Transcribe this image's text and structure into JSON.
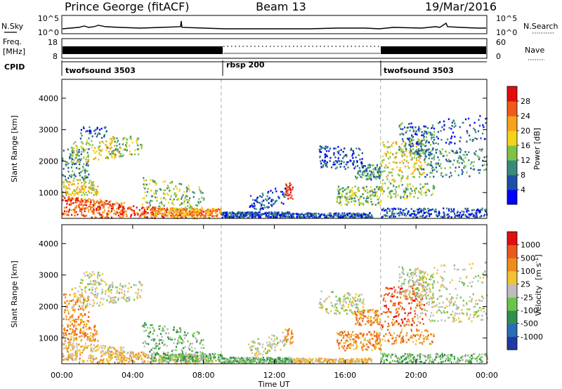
{
  "header": {
    "station": "Prince George (fitACF)",
    "beam": "Beam 13",
    "date": "19/Mar/2016"
  },
  "nsky_panel": {
    "left_label": "N.Sky",
    "right_label": "N.Search",
    "left_ticks": [
      "10^5",
      "10^0"
    ],
    "right_ticks": [
      "10^5",
      "10^0"
    ]
  },
  "freq_panel": {
    "left_label_line1": "Freq.",
    "left_label_line2": "[MHz]",
    "right_label": "Nave",
    "left_ticks": [
      "18",
      "8"
    ],
    "right_ticks": [
      "60",
      "0"
    ]
  },
  "cpid_panel": {
    "label": "CPID",
    "modes": [
      {
        "name": "twofsound 3503",
        "start_hour": 0
      },
      {
        "name": "rbsp 200",
        "start_hour": 9
      },
      {
        "name": "twofsound 3503",
        "start_hour": 18
      }
    ]
  },
  "chart_data": [
    {
      "type": "heatmap",
      "title": "",
      "xlabel": "",
      "ylabel": "Slant Range [km]",
      "xlim": [
        0,
        24
      ],
      "ylim": [
        180,
        4600
      ],
      "yticks": [
        "1000",
        "2000",
        "3000",
        "4000"
      ],
      "colorbar_label": "Power [dB]",
      "colorbar_ticks": [
        "4",
        "8",
        "12",
        "16",
        "20",
        "24",
        "28"
      ],
      "colorbar_colors": [
        "#0000ff",
        "#1e4fa6",
        "#3a8a7a",
        "#7fc24a",
        "#f4d31a",
        "#f7a21c",
        "#f25a18",
        "#e10d0d"
      ],
      "mode_change_hours": [
        9,
        18
      ]
    },
    {
      "type": "heatmap",
      "title": "",
      "xlabel": "Time UT",
      "ylabel": "Slant Range [km]",
      "xlim": [
        0,
        24
      ],
      "ylim": [
        180,
        4600
      ],
      "xticks": [
        "00:00",
        "04:00",
        "08:00",
        "12:00",
        "16:00",
        "20:00",
        "00:00"
      ],
      "yticks": [
        "1000",
        "2000",
        "3000",
        "4000"
      ],
      "colorbar_label": "Velocity",
      "colorbar_unit": "[m s",
      "colorbar_unit_exp": "-1",
      "colorbar_unit_end": "]",
      "colorbar_ticks": [
        "1000",
        "500",
        "100",
        "25",
        "-25",
        "-100",
        "-500",
        "-1000"
      ],
      "colorbar_colors": [
        "#1f3aa0",
        "#2c6cb4",
        "#2f8f4f",
        "#6bc44a",
        "#bdbdbd",
        "#f2c233",
        "#ef8c1e",
        "#ea5a1e",
        "#e01010"
      ],
      "mode_change_hours": [
        9,
        18
      ]
    }
  ]
}
